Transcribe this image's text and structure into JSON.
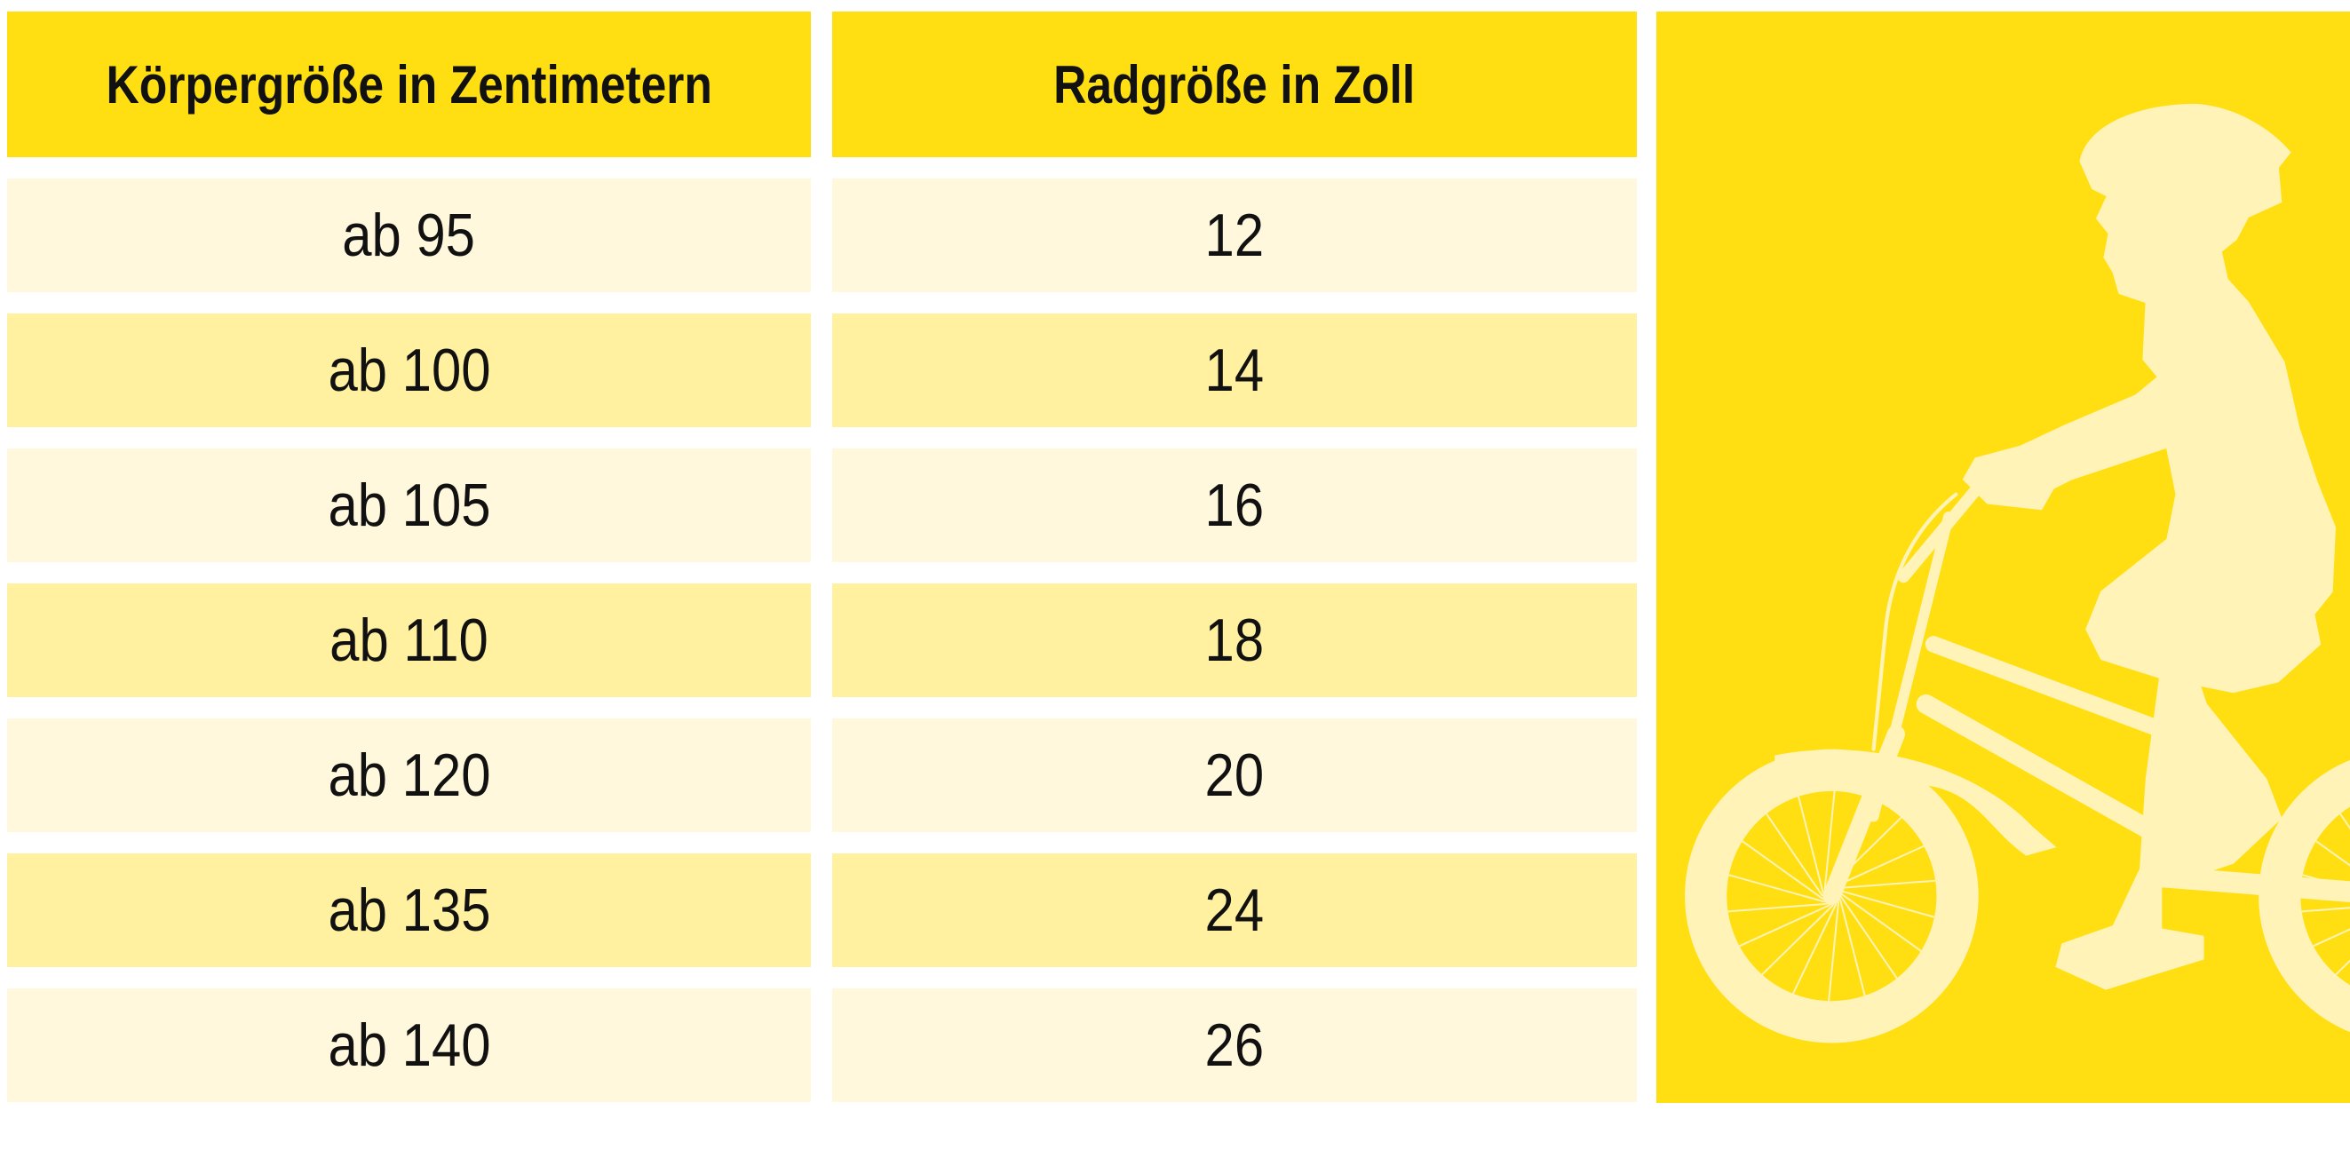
{
  "table": {
    "headers": [
      "Körpergröße in Zentimetern",
      "Radgröße in Zoll"
    ],
    "rows": [
      [
        "ab 95",
        "12"
      ],
      [
        "ab 100",
        "14"
      ],
      [
        "ab 105",
        "16"
      ],
      [
        "ab 110",
        "18"
      ],
      [
        "ab 120",
        "20"
      ],
      [
        "ab 135",
        "24"
      ],
      [
        "ab 140",
        "26"
      ]
    ]
  },
  "illustration": {
    "icon": "child-on-bicycle-silhouette",
    "background_color": "#FFDF12",
    "silhouette_color": "#FFF3B8"
  },
  "colors": {
    "header": "#FFDF12",
    "row_light": "#FFF8DC",
    "row_dark": "#FFF1A0"
  }
}
